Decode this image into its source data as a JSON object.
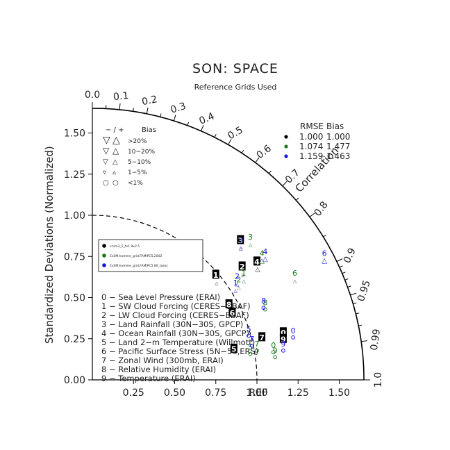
{
  "chart_data": {
    "type": "scatter",
    "subtype": "taylor-diagram",
    "title": "SON: SPACE",
    "subtitle": "Reference Grids Used",
    "ylabel": "Standardized Deviations (Normalized)",
    "arc_label": "Correlation",
    "ref_label": "REF",
    "xlim": [
      0,
      1.65
    ],
    "ylim": [
      0,
      1.65
    ],
    "x_ticks": [
      "0.25",
      "0.50",
      "0.75",
      "1.00",
      "1.25",
      "1.50"
    ],
    "x_tick_values": [
      0.25,
      0.5,
      0.75,
      1.0,
      1.25,
      1.5
    ],
    "y_ticks": [
      "0.00",
      "0.25",
      "0.50",
      "0.75",
      "1.00",
      "1.25",
      "1.50"
    ],
    "y_tick_values": [
      0,
      0.25,
      0.5,
      0.75,
      1.0,
      1.25,
      1.5
    ],
    "corr_labeled": [
      "0.0",
      "0.1",
      "0.2",
      "0.3",
      "0.4",
      "0.5",
      "0.6",
      "0.7",
      "0.8",
      "0.9",
      "0.95",
      "0.99",
      "1.0"
    ],
    "corr_labeled_values": [
      0.0,
      0.1,
      0.2,
      0.3,
      0.4,
      0.5,
      0.6,
      0.7,
      0.8,
      0.9,
      0.95,
      0.99,
      1.0
    ],
    "corr_minor_values": [
      0.05,
      0.15,
      0.25,
      0.35,
      0.45,
      0.55,
      0.65,
      0.75,
      0.85,
      0.91,
      0.92,
      0.93,
      0.94,
      0.96,
      0.97,
      0.98
    ],
    "rmse_arc": 1.0,
    "bias_legend": {
      "header_symbols": "− / +",
      "header_label": "Bias",
      "rows": [
        {
          "label": ">20%",
          "down": "▽",
          "up": "△",
          "size": 12
        },
        {
          "label": "10−20%",
          "down": "▽",
          "up": "△",
          "size": 10
        },
        {
          "label": "5−10%",
          "down": "▽",
          "up": "△",
          "size": 8
        },
        {
          "label": "1−5%",
          "down": "▿",
          "up": "▵",
          "size": 8
        },
        {
          "label": "<1%",
          "down": "○",
          "up": "○",
          "size": 8
        }
      ]
    },
    "rmse_table": {
      "header": [
        "RMSE",
        "Bias"
      ],
      "rows": [
        {
          "color": "#000000",
          "rmse": "1.000",
          "bias": "1.000"
        },
        {
          "color": "#1a7a1a",
          "rmse": "1.074",
          "bias": "1.477"
        },
        {
          "color": "#1414e6",
          "rmse": "1.159",
          "bias": "1.463"
        }
      ]
    },
    "series": [
      {
        "name": "ccsm3_5_fv1.9x2.5",
        "color": "#000000",
        "style": "filled",
        "points": [
          {
            "id": "0",
            "x": 1.16,
            "y": 0.29,
            "bias": "circle"
          },
          {
            "id": "1",
            "x": 0.75,
            "y": 0.64,
            "bias": "up-small"
          },
          {
            "id": "2",
            "x": 0.91,
            "y": 0.69,
            "bias": "up-small"
          },
          {
            "id": "3",
            "x": 0.9,
            "y": 0.85,
            "bias": "up-small"
          },
          {
            "id": "4",
            "x": 1.0,
            "y": 0.72,
            "bias": "up"
          },
          {
            "id": "5",
            "x": 0.86,
            "y": 0.19,
            "bias": "circle"
          },
          {
            "id": "6",
            "x": 0.85,
            "y": 0.41,
            "bias": "circle"
          },
          {
            "id": "7",
            "x": 1.03,
            "y": 0.26,
            "bias": "circle"
          },
          {
            "id": "8",
            "x": 0.83,
            "y": 0.46,
            "bias": "circle"
          },
          {
            "id": "9",
            "x": 1.16,
            "y": 0.25,
            "bias": "circle"
          }
        ]
      },
      {
        "name": "ExSM.homme_grid.FAMIPC5.2002",
        "color": "#1a7a1a",
        "style": "open",
        "points": [
          {
            "id": "0",
            "x": 1.1,
            "y": 0.21,
            "bias": "circle"
          },
          {
            "id": "1",
            "x": 0.92,
            "y": 0.65,
            "bias": "up-small"
          },
          {
            "id": "2",
            "x": 0.89,
            "y": 0.61,
            "bias": "up-small"
          },
          {
            "id": "3",
            "x": 0.96,
            "y": 0.87,
            "bias": "up-small"
          },
          {
            "id": "4",
            "x": 1.03,
            "y": 0.77,
            "bias": "up"
          },
          {
            "id": "5",
            "x": 0.96,
            "y": 0.2,
            "bias": "circle"
          },
          {
            "id": "6",
            "x": 1.23,
            "y": 0.65,
            "bias": "up-small"
          },
          {
            "id": "7",
            "x": 1.0,
            "y": 0.22,
            "bias": "circle"
          },
          {
            "id": "8",
            "x": 1.05,
            "y": 0.47,
            "bias": "circle"
          },
          {
            "id": "9",
            "x": 1.11,
            "y": 0.18,
            "bias": "circle"
          }
        ]
      },
      {
        "name": "ExSM.homme_grid.FAMIPC5.80_tasks",
        "color": "#1414e6",
        "style": "open",
        "points": [
          {
            "id": "0",
            "x": 1.22,
            "y": 0.3,
            "bias": "circle"
          },
          {
            "id": "1",
            "x": 0.87,
            "y": 0.59,
            "bias": "up-small"
          },
          {
            "id": "2",
            "x": 0.88,
            "y": 0.63,
            "bias": "up-small"
          },
          {
            "id": "3",
            "x": 0.9,
            "y": 0.85,
            "bias": "up-small"
          },
          {
            "id": "4",
            "x": 1.05,
            "y": 0.78,
            "bias": "up"
          },
          {
            "id": "5",
            "x": 0.95,
            "y": 0.31,
            "bias": "circle"
          },
          {
            "id": "6",
            "x": 1.41,
            "y": 0.77,
            "bias": "up"
          },
          {
            "id": "7",
            "x": 0.97,
            "y": 0.25,
            "bias": "circle"
          },
          {
            "id": "8",
            "x": 1.04,
            "y": 0.48,
            "bias": "circle"
          },
          {
            "id": "9",
            "x": 1.16,
            "y": 0.22,
            "bias": "circle"
          }
        ]
      }
    ],
    "variables": [
      "0 − Sea Level Pressure (ERAI)",
      "1 − SW Cloud Forcing (CERES−EBAF)",
      "2 − LW Cloud Forcing (CERES−EBAF)",
      "3 − Land Rainfall (30N−30S, GPCP)",
      "4 − Ocean Rainfall (30N−30S, GPCP)",
      "5 − Land 2−m Temperature (Willmott)",
      "6 − Pacific Surface Stress (5N−5S,ERS)",
      "7 − Zonal Wind (300mb, ERAI)",
      "8 − Relative Humidity (ERAI)",
      "9 − Temperature (ERAI)"
    ]
  }
}
